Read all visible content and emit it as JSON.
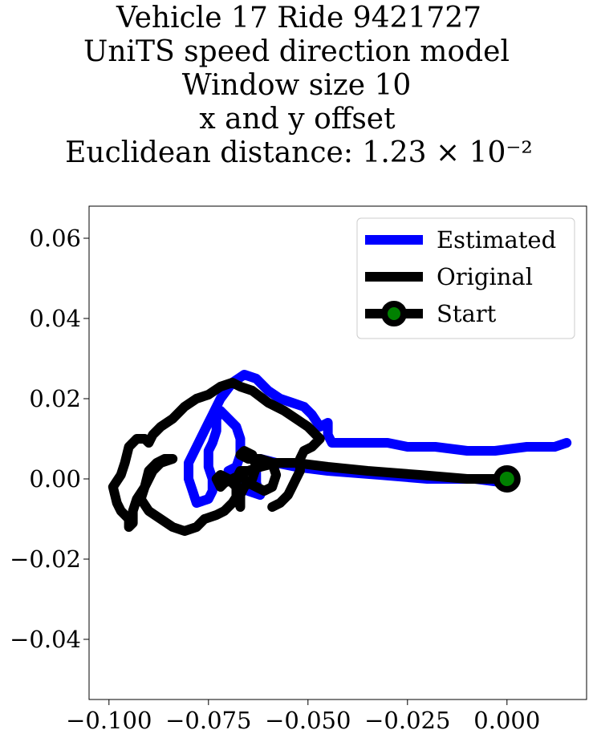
{
  "chart_data": {
    "type": "line",
    "title": [
      "Vehicle 17 Ride 9421727",
      "UniTS speed direction model",
      "Window size 10",
      "x and y offset",
      "Euclidean distance: 1.23 × 10⁻²"
    ],
    "xlabel": "",
    "ylabel": "",
    "xlim": [
      -0.105,
      0.02
    ],
    "ylim": [
      -0.055,
      0.068
    ],
    "x_ticks": [
      -0.1,
      -0.075,
      -0.05,
      -0.025,
      0.0
    ],
    "x_tick_labels": [
      "−0.100",
      "−0.075",
      "−0.050",
      "−0.025",
      "0.000"
    ],
    "y_ticks": [
      -0.04,
      -0.02,
      0.0,
      0.02,
      0.04,
      0.06
    ],
    "y_tick_labels": [
      "−0.04",
      "−0.02",
      "0.00",
      "0.02",
      "0.04",
      "0.06"
    ],
    "grid": false,
    "legend_position": "top-right",
    "series": [
      {
        "name": "Estimated",
        "color": "#0000ff",
        "points": [
          [
            0.0,
            -0.001
          ],
          [
            -0.008,
            0.0
          ],
          [
            -0.02,
            0.0
          ],
          [
            -0.032,
            0.001
          ],
          [
            -0.045,
            0.002
          ],
          [
            -0.053,
            0.003
          ],
          [
            -0.058,
            0.004
          ],
          [
            -0.062,
            0.005
          ],
          [
            -0.063,
            0.003
          ],
          [
            -0.063,
            -0.001
          ],
          [
            -0.062,
            -0.004
          ],
          [
            -0.065,
            -0.003
          ],
          [
            -0.068,
            0.0
          ],
          [
            -0.07,
            0.0
          ],
          [
            -0.07,
            0.002
          ],
          [
            -0.068,
            0.003
          ],
          [
            -0.067,
            0.006
          ],
          [
            -0.067,
            0.01
          ],
          [
            -0.068,
            0.013
          ],
          [
            -0.07,
            0.015
          ],
          [
            -0.072,
            0.017
          ],
          [
            -0.073,
            0.015
          ],
          [
            -0.073,
            0.012
          ],
          [
            -0.074,
            0.009
          ],
          [
            -0.075,
            0.007
          ],
          [
            -0.075,
            0.003
          ],
          [
            -0.074,
            0.0
          ],
          [
            -0.074,
            -0.003
          ],
          [
            -0.075,
            -0.005
          ],
          [
            -0.078,
            -0.006
          ],
          [
            -0.079,
            -0.003
          ],
          [
            -0.08,
            0.0
          ],
          [
            -0.08,
            0.004
          ],
          [
            -0.078,
            0.008
          ],
          [
            -0.076,
            0.012
          ],
          [
            -0.074,
            0.016
          ],
          [
            -0.072,
            0.02
          ],
          [
            -0.069,
            0.024
          ],
          [
            -0.066,
            0.026
          ],
          [
            -0.063,
            0.025
          ],
          [
            -0.06,
            0.022
          ],
          [
            -0.057,
            0.02
          ],
          [
            -0.054,
            0.019
          ],
          [
            -0.051,
            0.018
          ],
          [
            -0.049,
            0.016
          ],
          [
            -0.047,
            0.013
          ],
          [
            -0.045,
            0.014
          ],
          [
            -0.045,
            0.011
          ],
          [
            -0.044,
            0.009
          ],
          [
            -0.04,
            0.009
          ],
          [
            -0.035,
            0.009
          ],
          [
            -0.03,
            0.009
          ],
          [
            -0.025,
            0.008
          ],
          [
            -0.018,
            0.008
          ],
          [
            -0.01,
            0.007
          ],
          [
            -0.003,
            0.007
          ],
          [
            0.005,
            0.008
          ],
          [
            0.012,
            0.008
          ],
          [
            0.015,
            0.009
          ]
        ]
      },
      {
        "name": "Original",
        "color": "#000000",
        "points": [
          [
            0.0,
            0.0
          ],
          [
            -0.01,
            0.0
          ],
          [
            -0.022,
            0.001
          ],
          [
            -0.035,
            0.002
          ],
          [
            -0.045,
            0.003
          ],
          [
            -0.053,
            0.004
          ],
          [
            -0.058,
            0.004
          ],
          [
            -0.062,
            0.003
          ],
          [
            -0.065,
            0.002
          ],
          [
            -0.067,
            0.002
          ],
          [
            -0.068,
            0.0
          ],
          [
            -0.068,
            -0.004
          ],
          [
            -0.067,
            -0.007
          ],
          [
            -0.067,
            -0.004
          ],
          [
            -0.066,
            -0.002
          ],
          [
            -0.064,
            0.0
          ],
          [
            -0.063,
            0.003
          ],
          [
            -0.064,
            0.006
          ],
          [
            -0.066,
            0.007
          ],
          [
            -0.067,
            0.006
          ],
          [
            -0.065,
            0.005
          ],
          [
            -0.062,
            0.005
          ],
          [
            -0.059,
            0.004
          ],
          [
            -0.058,
            0.001
          ],
          [
            -0.059,
            -0.002
          ],
          [
            -0.061,
            -0.003
          ],
          [
            -0.063,
            -0.002
          ],
          [
            -0.065,
            -0.001
          ],
          [
            -0.066,
            0.0
          ],
          [
            -0.067,
            0.001
          ],
          [
            -0.069,
            0.0
          ],
          [
            -0.071,
            -0.001
          ],
          [
            -0.072,
            -0.002
          ],
          [
            -0.073,
            0.0
          ],
          [
            -0.072,
            0.001
          ],
          [
            -0.07,
            0.0
          ],
          [
            -0.068,
            -0.002
          ],
          [
            -0.067,
            -0.003
          ],
          [
            -0.069,
            -0.006
          ],
          [
            -0.071,
            -0.008
          ],
          [
            -0.073,
            -0.009
          ],
          [
            -0.076,
            -0.01
          ],
          [
            -0.078,
            -0.012
          ],
          [
            -0.081,
            -0.013
          ],
          [
            -0.084,
            -0.012
          ],
          [
            -0.087,
            -0.01
          ],
          [
            -0.09,
            -0.008
          ],
          [
            -0.092,
            -0.005
          ],
          [
            -0.091,
            -0.002
          ],
          [
            -0.09,
            0.002
          ],
          [
            -0.088,
            0.004
          ],
          [
            -0.086,
            0.005
          ],
          [
            -0.085,
            0.005
          ],
          [
            -0.084,
            0.005
          ],
          [
            -0.087,
            0.004
          ],
          [
            -0.089,
            0.002
          ],
          [
            -0.091,
            -0.002
          ],
          [
            -0.093,
            -0.005
          ],
          [
            -0.094,
            -0.008
          ],
          [
            -0.094,
            -0.011
          ],
          [
            -0.095,
            -0.012
          ],
          [
            -0.095,
            -0.01
          ],
          [
            -0.097,
            -0.008
          ],
          [
            -0.098,
            -0.006
          ],
          [
            -0.099,
            -0.002
          ],
          [
            -0.097,
            0.001
          ],
          [
            -0.096,
            0.004
          ],
          [
            -0.095,
            0.008
          ],
          [
            -0.093,
            0.01
          ],
          [
            -0.091,
            0.01
          ],
          [
            -0.09,
            0.009
          ],
          [
            -0.089,
            0.011
          ],
          [
            -0.087,
            0.013
          ],
          [
            -0.084,
            0.015
          ],
          [
            -0.081,
            0.018
          ],
          [
            -0.078,
            0.02
          ],
          [
            -0.075,
            0.021
          ],
          [
            -0.072,
            0.023
          ],
          [
            -0.069,
            0.024
          ],
          [
            -0.067,
            0.023
          ],
          [
            -0.064,
            0.022
          ],
          [
            -0.06,
            0.019
          ],
          [
            -0.056,
            0.017
          ],
          [
            -0.053,
            0.015
          ],
          [
            -0.05,
            0.013
          ],
          [
            -0.048,
            0.011
          ],
          [
            -0.047,
            0.01
          ],
          [
            -0.049,
            0.008
          ],
          [
            -0.051,
            0.007
          ],
          [
            -0.052,
            0.005
          ],
          [
            -0.052,
            0.002
          ],
          [
            -0.053,
            0.0
          ],
          [
            -0.054,
            -0.002
          ],
          [
            -0.055,
            -0.004
          ],
          [
            -0.057,
            -0.006
          ],
          [
            -0.059,
            -0.007
          ]
        ]
      }
    ],
    "start_point": {
      "name": "Start",
      "x": 0.0,
      "y": 0.0,
      "edge_color": "#000000",
      "fill_color": "#008000"
    }
  }
}
